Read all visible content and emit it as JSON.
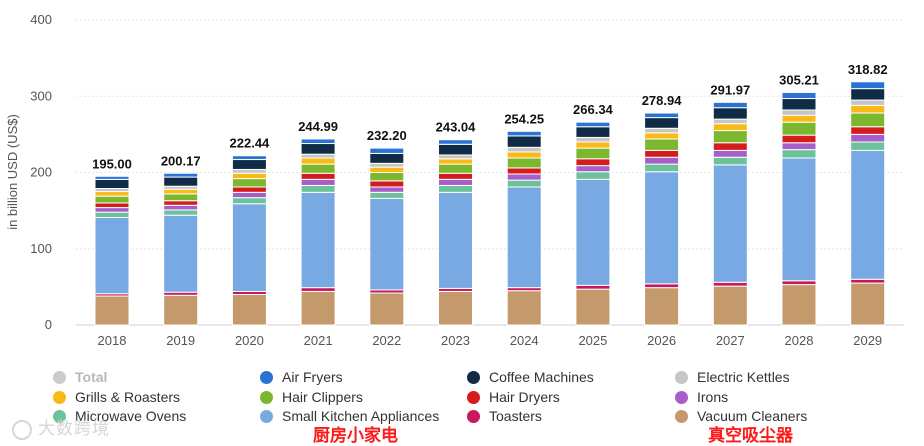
{
  "chart_data": {
    "type": "bar",
    "stacked": true,
    "ylabel": "in billion USD (US$)",
    "ylim": [
      0,
      400
    ],
    "yticks": [
      0,
      100,
      200,
      300,
      400
    ],
    "categories": [
      "2018",
      "2019",
      "2020",
      "2021",
      "2022",
      "2023",
      "2024",
      "2025",
      "2026",
      "2027",
      "2028",
      "2029"
    ],
    "totals": [
      195.0,
      200.17,
      222.44,
      244.99,
      232.2,
      243.04,
      254.25,
      266.34,
      278.94,
      291.97,
      305.21,
      318.82
    ],
    "total_labels": [
      "195.00",
      "200.17",
      "222.44",
      "244.99",
      "232.20",
      "243.04",
      "254.25",
      "266.34",
      "278.94",
      "291.97",
      "305.21",
      "318.82"
    ],
    "series": [
      {
        "name": "Vacuum Cleaners",
        "color": "#c49a6c",
        "values": [
          38,
          39,
          40,
          44,
          42,
          44,
          45,
          47,
          49,
          51,
          53,
          55
        ]
      },
      {
        "name": "Toasters",
        "color": "#c8175d",
        "values": [
          3,
          4,
          4,
          5,
          4,
          4,
          4,
          5,
          5,
          5,
          5,
          5
        ]
      },
      {
        "name": "Small Kitchen Appliances",
        "color": "#79a9e3",
        "values": [
          100,
          101,
          115,
          125,
          120,
          126,
          132,
          139,
          147,
          154,
          161,
          169
        ]
      },
      {
        "name": "Microwave Ovens",
        "color": "#6cc29b",
        "values": [
          7,
          7,
          8,
          9,
          8,
          9,
          9,
          10,
          10,
          10,
          11,
          11
        ]
      },
      {
        "name": "Irons",
        "color": "#a85ec8",
        "values": [
          6,
          6,
          7,
          8,
          7,
          8,
          8,
          8,
          9,
          9,
          9,
          10
        ]
      },
      {
        "name": "Hair Dryers",
        "color": "#d41c1c",
        "values": [
          6,
          6,
          7,
          8,
          8,
          8,
          8,
          9,
          9,
          10,
          10,
          10
        ]
      },
      {
        "name": "Hair Clippers",
        "color": "#7cb82f",
        "values": [
          9,
          9,
          11,
          12,
          11,
          12,
          13,
          14,
          15,
          16,
          17,
          18
        ]
      },
      {
        "name": "Grills & Roasters",
        "color": "#f9b916",
        "values": [
          6,
          6,
          7,
          8,
          7,
          7,
          8,
          8,
          8,
          9,
          9,
          10
        ]
      },
      {
        "name": "Electric Kettles",
        "color": "#c6c6c6",
        "values": [
          4,
          4,
          5,
          5,
          5,
          5,
          6,
          6,
          6,
          6,
          7,
          7
        ]
      },
      {
        "name": "Coffee Machines",
        "color": "#0f2b46",
        "values": [
          12,
          12,
          13,
          14,
          13,
          14,
          15,
          14,
          14,
          15,
          15,
          15
        ]
      },
      {
        "name": "Air Fryers",
        "color": "#2a73d6",
        "values": [
          4,
          5,
          5,
          6,
          7,
          6,
          6,
          6,
          6,
          7,
          8,
          9
        ]
      }
    ],
    "legend": [
      {
        "name": "Total",
        "color": "#cccccc",
        "hidden": true
      },
      {
        "name": "Air Fryers",
        "color": "#2a73d6"
      },
      {
        "name": "Coffee Machines",
        "color": "#0f2b46"
      },
      {
        "name": "Electric Kettles",
        "color": "#c6c6c6"
      },
      {
        "name": "Grills & Roasters",
        "color": "#f9b916"
      },
      {
        "name": "Hair Clippers",
        "color": "#7cb82f"
      },
      {
        "name": "Hair Dryers",
        "color": "#d41c1c"
      },
      {
        "name": "Irons",
        "color": "#a85ec8"
      },
      {
        "name": "Microwave Ovens",
        "color": "#6cc29b"
      },
      {
        "name": "Small Kitchen Appliances",
        "color": "#79a9e3"
      },
      {
        "name": "Toasters",
        "color": "#c8175d"
      },
      {
        "name": "Vacuum Cleaners",
        "color": "#c49a6c"
      }
    ]
  },
  "annotations": {
    "small_kitchen": "厨房小家电",
    "vacuum": "真空吸尘器",
    "color": "#ff1a1a"
  },
  "watermark": "大数跨境"
}
